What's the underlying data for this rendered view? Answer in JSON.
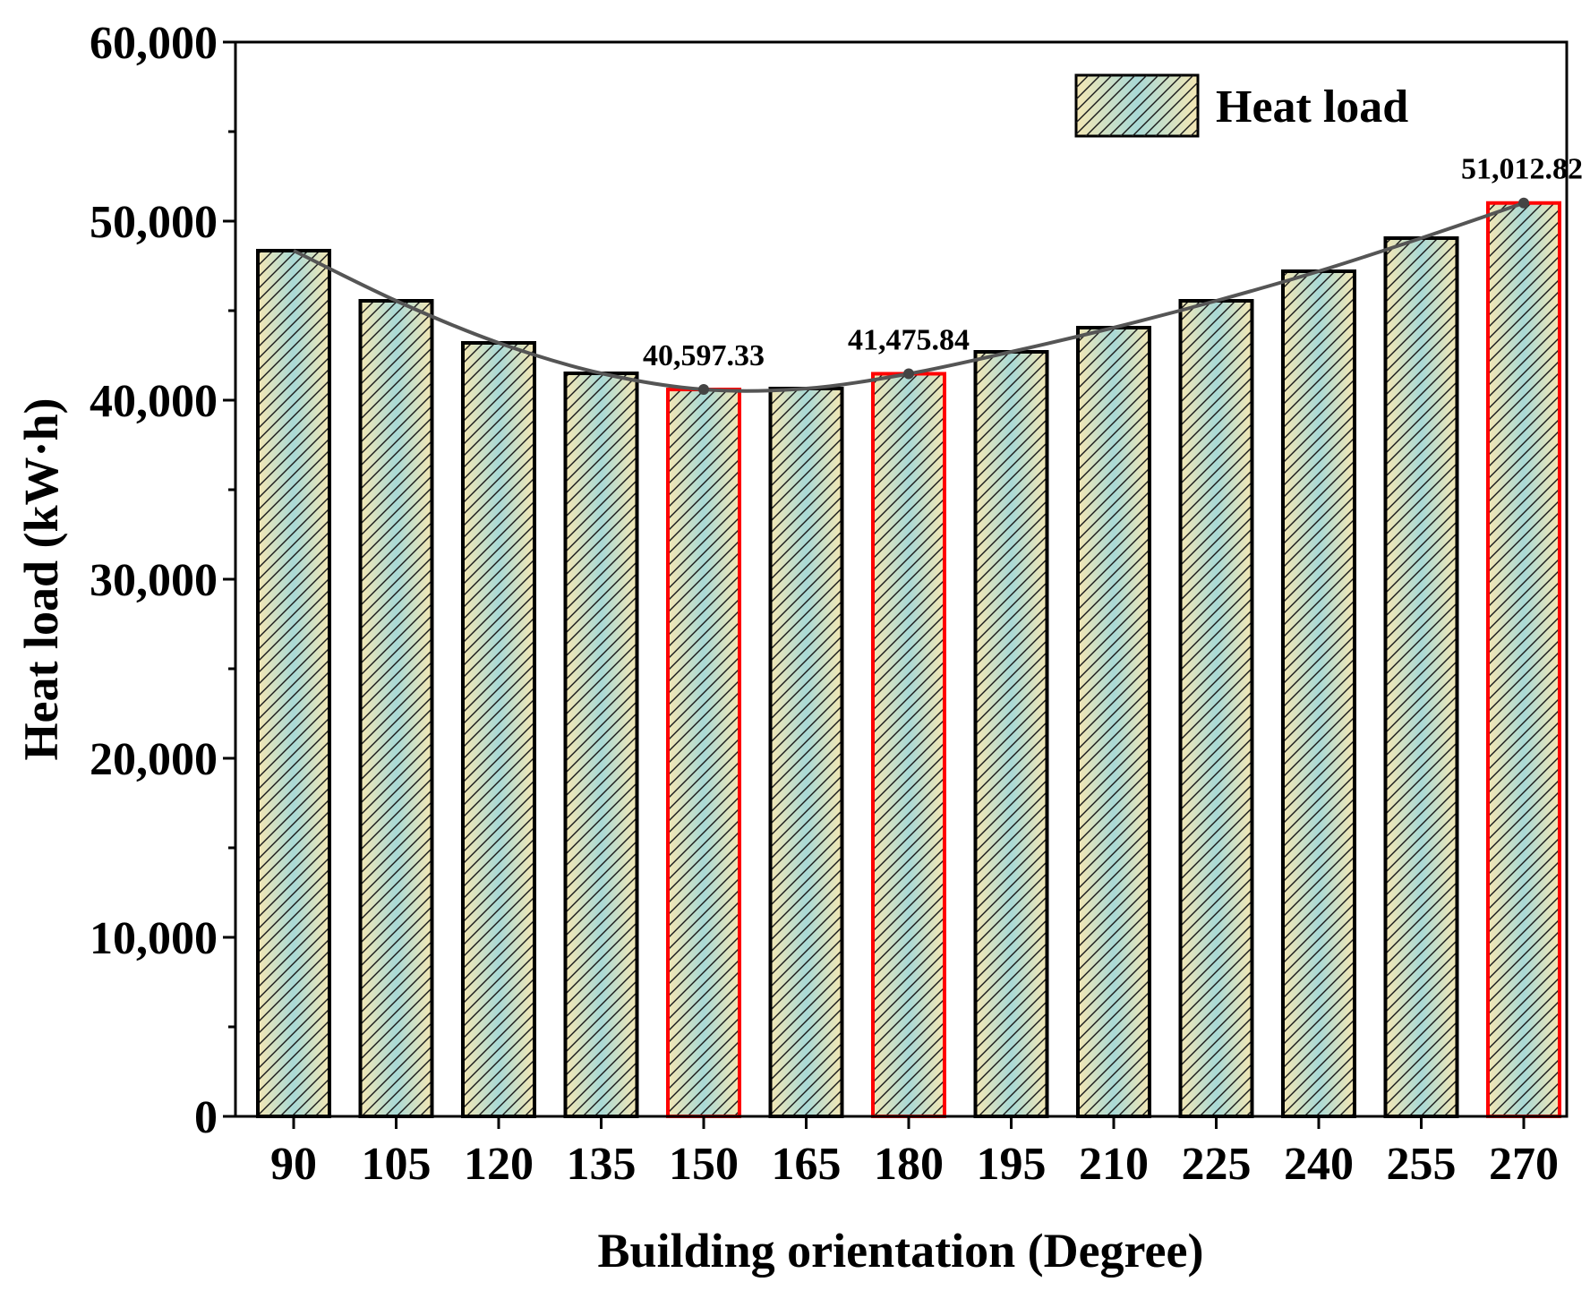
{
  "chart_data": {
    "type": "bar",
    "title": "",
    "xlabel": "Building orientation (Degree)",
    "ylabel": "Heat load (kW·h)",
    "ylim": [
      0,
      60000
    ],
    "yticks": [
      0,
      10000,
      20000,
      30000,
      40000,
      50000,
      60000
    ],
    "ytick_labels": [
      "0",
      "10,000",
      "20,000",
      "30,000",
      "40,000",
      "50,000",
      "60,000"
    ],
    "categories": [
      "90",
      "105",
      "120",
      "135",
      "150",
      "165",
      "180",
      "195",
      "210",
      "225",
      "240",
      "255",
      "270"
    ],
    "series": [
      {
        "name": "Heat load",
        "values": [
          48350,
          45550,
          43200,
          41500,
          40597.33,
          40650,
          41475.84,
          42700,
          44050,
          45550,
          47200,
          49050,
          51012.82
        ]
      }
    ],
    "highlighted_categories": [
      "150",
      "180",
      "270"
    ],
    "trend_line": true,
    "annotations": [
      {
        "category": "150",
        "value": 40597.33,
        "text": "40,597.33"
      },
      {
        "category": "180",
        "value": 41475.84,
        "text": "41,475.84"
      },
      {
        "category": "270",
        "value": 51012.82,
        "text": "51,012.82"
      }
    ],
    "legend": {
      "position": "top-right",
      "label": "Heat load"
    },
    "colors": {
      "fill_start": "#f4e7b4",
      "fill_end": "#a9d9d6",
      "bar_edge": "#000000",
      "highlight_edge": "#ff0000",
      "line": "#555555",
      "hatch": "#1a1a1a"
    }
  }
}
